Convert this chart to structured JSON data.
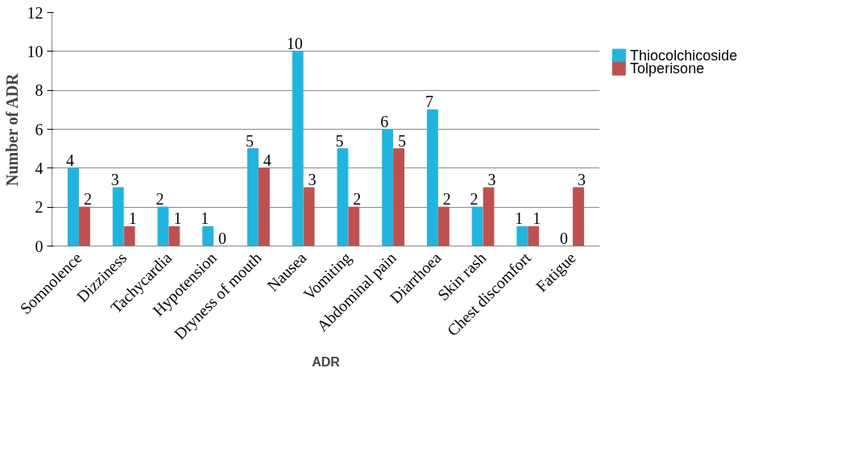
{
  "chart_data": {
    "type": "bar",
    "xlabel": "ADR",
    "ylabel": "Number of ADR",
    "categories": [
      "Somnolence",
      "Dizziness",
      "Tachycardia",
      "Hypotension",
      "Dryness of mouth",
      "Nausea",
      "Vomiting",
      "Abdominal pain",
      "Diarrhoea",
      "Skin rash",
      "Chest discomfort",
      "Fatigue"
    ],
    "series": [
      {
        "name": "Thiocolchicoside",
        "color": "#1fb5e0",
        "values": [
          4,
          3,
          2,
          1,
          5,
          10,
          5,
          6,
          7,
          2,
          1,
          0
        ]
      },
      {
        "name": "Tolperisone",
        "color": "#c0504d",
        "values": [
          2,
          1,
          1,
          0,
          4,
          3,
          2,
          5,
          2,
          3,
          1,
          3
        ]
      }
    ],
    "ylim": [
      0,
      12
    ],
    "yticks": [
      0,
      2,
      4,
      6,
      8,
      10,
      12
    ],
    "grid": "y",
    "legend": "right",
    "data_labels": true
  }
}
